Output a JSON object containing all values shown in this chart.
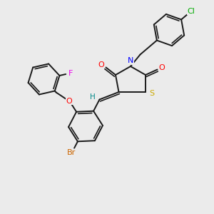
{
  "bg_color": "#ebebeb",
  "bond_color": "#1a1a1a",
  "atom_colors": {
    "F": "#ee00ee",
    "O": "#ff0000",
    "N": "#0000ff",
    "S": "#ccaa00",
    "Br": "#cc6600",
    "Cl": "#00aa00",
    "H": "#008888"
  },
  "lw": 1.4
}
